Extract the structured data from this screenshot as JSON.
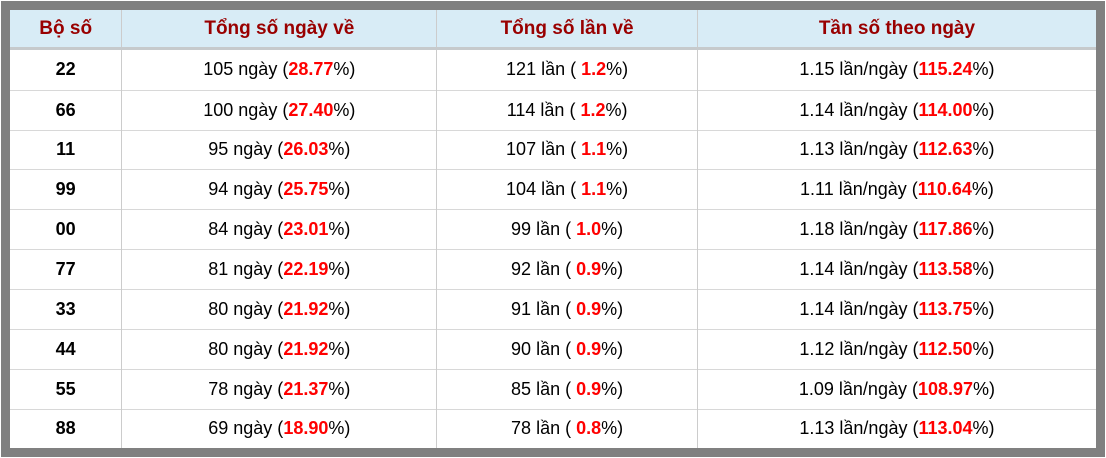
{
  "colors": {
    "frame_color": "#808080",
    "header_bg": "#d8ecf6",
    "header_text": "#990000",
    "header_divider": "#c6cacc",
    "grid_color": "#cccccc",
    "row_divider": "#d8d8d8",
    "body_text": "#000000",
    "highlight": "#ff0000"
  },
  "table": {
    "columns": [
      {
        "label": "Bộ số"
      },
      {
        "label": "Tổng số ngày về"
      },
      {
        "label": "Tổng số lần về"
      },
      {
        "label": "Tần số theo ngày"
      }
    ],
    "rows": [
      {
        "pair": "22",
        "days": {
          "prefix": "105 ngày (",
          "value": "28.77",
          "suffix": "%)"
        },
        "times": {
          "prefix": "121 lần ( ",
          "value": "1.2",
          "suffix": "%)"
        },
        "freq": {
          "prefix": "1.15 lần/ngày (",
          "value": "115.24",
          "suffix": "%)"
        }
      },
      {
        "pair": "66",
        "days": {
          "prefix": "100 ngày (",
          "value": "27.40",
          "suffix": "%)"
        },
        "times": {
          "prefix": "114 lần ( ",
          "value": "1.2",
          "suffix": "%)"
        },
        "freq": {
          "prefix": "1.14 lần/ngày (",
          "value": "114.00",
          "suffix": "%)"
        }
      },
      {
        "pair": "11",
        "days": {
          "prefix": "95 ngày (",
          "value": "26.03",
          "suffix": "%)"
        },
        "times": {
          "prefix": "107 lần ( ",
          "value": "1.1",
          "suffix": "%)"
        },
        "freq": {
          "prefix": "1.13 lần/ngày (",
          "value": "112.63",
          "suffix": "%)"
        }
      },
      {
        "pair": "99",
        "days": {
          "prefix": "94 ngày (",
          "value": "25.75",
          "suffix": "%)"
        },
        "times": {
          "prefix": "104 lần ( ",
          "value": "1.1",
          "suffix": "%)"
        },
        "freq": {
          "prefix": "1.11 lần/ngày (",
          "value": "110.64",
          "suffix": "%)"
        }
      },
      {
        "pair": "00",
        "days": {
          "prefix": "84 ngày (",
          "value": "23.01",
          "suffix": "%)"
        },
        "times": {
          "prefix": "99 lần ( ",
          "value": "1.0",
          "suffix": "%)"
        },
        "freq": {
          "prefix": "1.18 lần/ngày (",
          "value": "117.86",
          "suffix": "%)"
        }
      },
      {
        "pair": "77",
        "days": {
          "prefix": "81 ngày (",
          "value": "22.19",
          "suffix": "%)"
        },
        "times": {
          "prefix": "92 lần ( ",
          "value": "0.9",
          "suffix": "%)"
        },
        "freq": {
          "prefix": "1.14 lần/ngày (",
          "value": "113.58",
          "suffix": "%)"
        }
      },
      {
        "pair": "33",
        "days": {
          "prefix": "80 ngày (",
          "value": "21.92",
          "suffix": "%)"
        },
        "times": {
          "prefix": "91 lần ( ",
          "value": "0.9",
          "suffix": "%)"
        },
        "freq": {
          "prefix": "1.14 lần/ngày (",
          "value": "113.75",
          "suffix": "%)"
        }
      },
      {
        "pair": "44",
        "days": {
          "prefix": "80 ngày (",
          "value": "21.92",
          "suffix": "%)"
        },
        "times": {
          "prefix": "90 lần ( ",
          "value": "0.9",
          "suffix": "%)"
        },
        "freq": {
          "prefix": "1.12 lần/ngày (",
          "value": "112.50",
          "suffix": "%)"
        }
      },
      {
        "pair": "55",
        "days": {
          "prefix": "78 ngày (",
          "value": "21.37",
          "suffix": "%)"
        },
        "times": {
          "prefix": "85 lần ( ",
          "value": "0.9",
          "suffix": "%)"
        },
        "freq": {
          "prefix": "1.09 lần/ngày (",
          "value": "108.97",
          "suffix": "%)"
        }
      },
      {
        "pair": "88",
        "days": {
          "prefix": "69 ngày (",
          "value": "18.90",
          "suffix": "%)"
        },
        "times": {
          "prefix": "78 lần ( ",
          "value": "0.8",
          "suffix": "%)"
        },
        "freq": {
          "prefix": "1.13 lần/ngày (",
          "value": "113.04",
          "suffix": "%)"
        }
      }
    ]
  }
}
